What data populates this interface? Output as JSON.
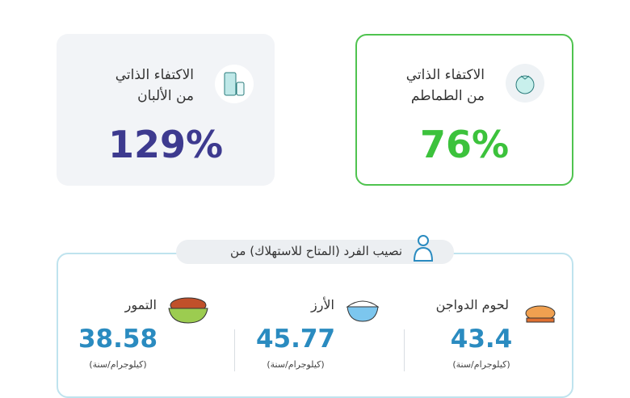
{
  "cards": [
    {
      "line1": "الاكتفاء الذاتي",
      "line2": "من الطماطم",
      "value": "76%"
    },
    {
      "line1": "الاكتفاء الذاتي",
      "line2": "من الألبان",
      "value": "129%"
    }
  ],
  "section": {
    "title": "نصيب الفرد (المتاح للاستهلاك) من",
    "items": [
      {
        "label": "لحوم الدواجن",
        "value": "43.4",
        "unit": "(كيلوجرام/سنة)"
      },
      {
        "label": "الأرز",
        "value": "45.77",
        "unit": "(كيلوجرام/سنة)"
      },
      {
        "label": "التمور",
        "value": "38.58",
        "unit": "(كيلوجرام/سنة)"
      }
    ]
  }
}
